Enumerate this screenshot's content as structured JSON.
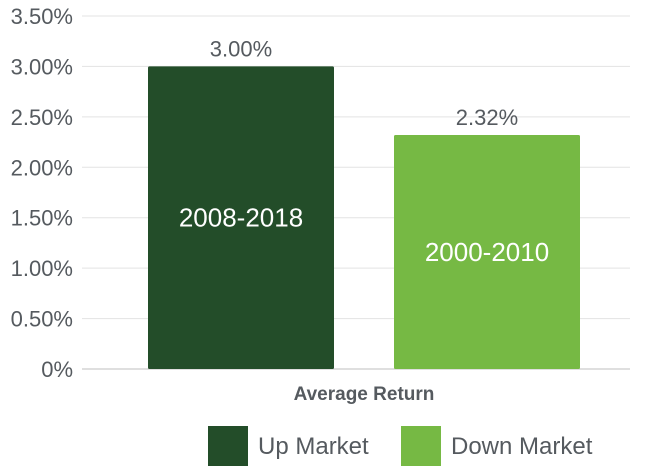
{
  "chart_data": {
    "type": "bar",
    "xlabel": "Average Return",
    "ylim": [
      0,
      3.5
    ],
    "yticks": [
      0,
      0.5,
      1.0,
      1.5,
      2.0,
      2.5,
      3.0,
      3.5
    ],
    "ytick_labels": [
      "0%",
      "0.50%",
      "1.00%",
      "1.50%",
      "2.00%",
      "2.50%",
      "3.00%",
      "3.50%"
    ],
    "grid": true,
    "legend_position": "bottom",
    "series": [
      {
        "name": "Up Market",
        "value": 3.0,
        "data_label": "3.00%",
        "bar_label": "2008-2018",
        "color": "#234d29"
      },
      {
        "name": "Down Market",
        "value": 2.32,
        "data_label": "2.32%",
        "bar_label": "2000-2010",
        "color": "#76b944"
      }
    ]
  }
}
